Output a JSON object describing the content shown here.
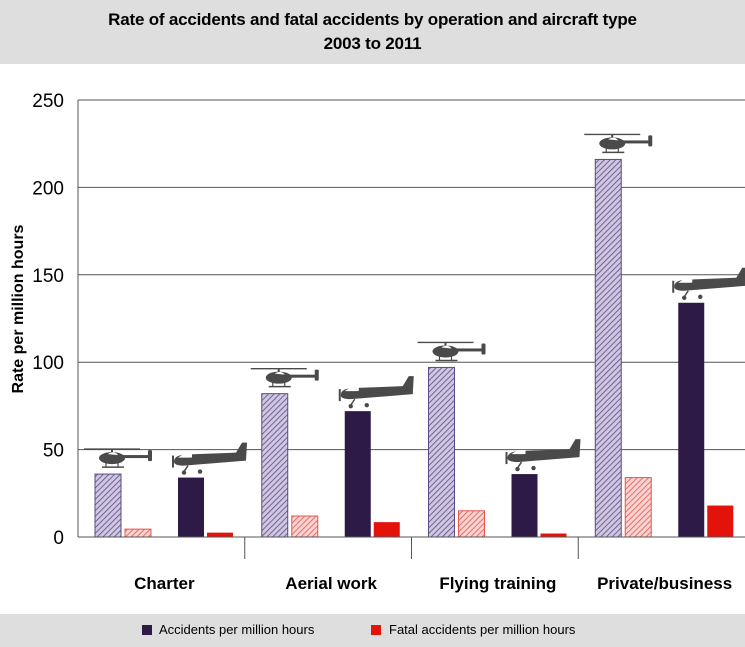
{
  "chart_data": {
    "type": "bar",
    "title": "Rate of accidents and fatal accidents by operation and aircraft type",
    "subtitle": "2003 to 2011",
    "ylabel": "Rate per million hours",
    "xlabel": "",
    "ylim": [
      0,
      250
    ],
    "yticks": [
      0,
      50,
      100,
      150,
      200,
      250
    ],
    "grid": true,
    "legend_position": "bottom",
    "categories": [
      "Charter",
      "Aerial work",
      "Flying training",
      "Private/business"
    ],
    "aircraft_types": [
      "helicopter",
      "aeroplane"
    ],
    "series": [
      {
        "name": "Accidents per million hours",
        "color": "#2e1a47",
        "helicopter": [
          36,
          82,
          97,
          216
        ],
        "aeroplane": [
          34,
          72,
          36,
          134
        ]
      },
      {
        "name": "Fatal accidents per million hours",
        "color": "#e3120b",
        "helicopter": [
          4.5,
          12,
          15,
          34
        ],
        "aeroplane": [
          2.5,
          8.5,
          2,
          18
        ]
      }
    ]
  },
  "colors": {
    "accidents_helicopter_fill": "#a79cc2",
    "accidents_aeroplane": "#2e1a47",
    "fatal_helicopter_fill": "#f5a3a0",
    "fatal_aeroplane": "#e3120b",
    "icon": "#4a4a4a"
  },
  "icons": {
    "helicopter": "helicopter-icon",
    "aeroplane": "aeroplane-icon"
  }
}
